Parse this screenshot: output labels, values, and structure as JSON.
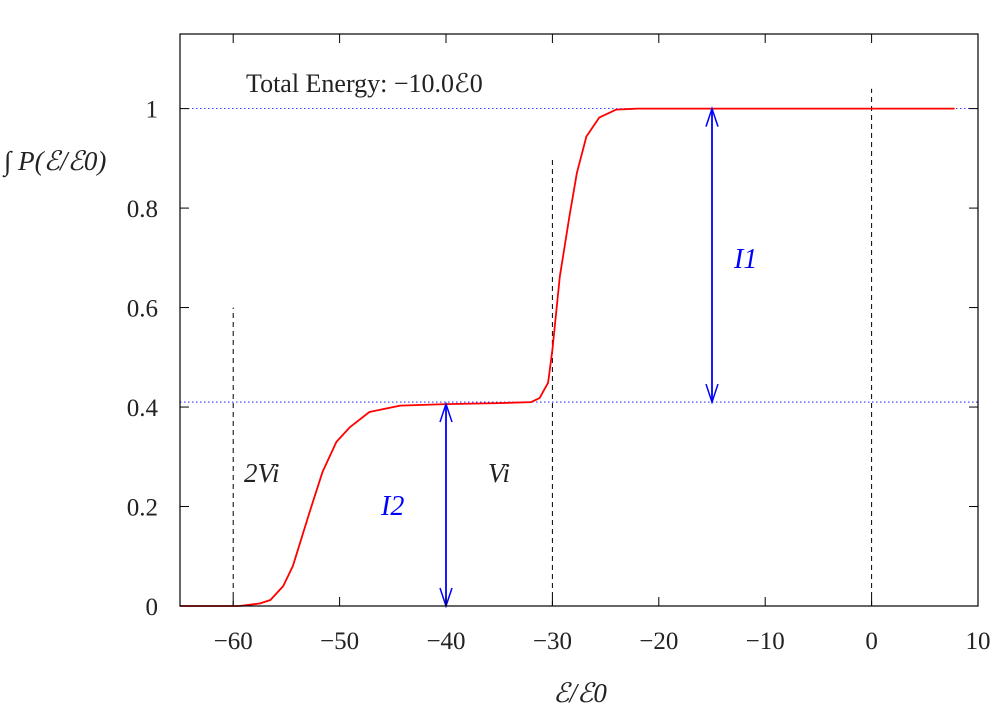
{
  "chart_data": {
    "type": "line",
    "title": "",
    "xlabel": "ℰ/ℰ0",
    "ylabel": "∫ P(ℰ/ℰ0)",
    "xlim": [
      -65,
      10
    ],
    "ylim": [
      0,
      1.15
    ],
    "grid": false,
    "xticks": [
      -60,
      -50,
      -40,
      -30,
      -20,
      -10,
      0,
      10
    ],
    "xtick_labels": [
      "−60",
      "−50",
      "−40",
      "−30",
      "−20",
      "−10",
      "0",
      "10"
    ],
    "yticks": [
      0,
      0.2,
      0.4,
      0.6,
      0.8,
      1
    ],
    "ytick_labels": [
      "0",
      "0.2",
      "0.4",
      "0.6",
      "0.8",
      "1"
    ],
    "series": [
      {
        "color": "#ff0000",
        "x": [
          -65,
          -60,
          -59.4,
          -57.5,
          -56.5,
          -55.3,
          -54.4,
          -52.8,
          -51.6,
          -50.3,
          -49.0,
          -47.2,
          -44.3,
          -40,
          -35,
          -32,
          -31.2,
          -30.4,
          -30,
          -29.3,
          -28.4,
          -27.7,
          -26.8,
          -25.6,
          -24,
          -22,
          -10,
          0,
          7.8
        ],
        "y": [
          0,
          0,
          0,
          0.005,
          0.012,
          0.04,
          0.08,
          0.19,
          0.27,
          0.33,
          0.36,
          0.39,
          0.403,
          0.406,
          0.408,
          0.41,
          0.418,
          0.449,
          0.515,
          0.662,
          0.783,
          0.871,
          0.944,
          0.982,
          0.998,
          1.0,
          1.0,
          1.0,
          1.0
        ]
      }
    ],
    "reference_lines": {
      "horizontal_dotted": {
        "color": "#0000ff",
        "y": [
          1.0,
          0.41
        ]
      },
      "vertical_dashed": [
        {
          "x": -60,
          "y_top": 0.6
        },
        {
          "x": -30,
          "y_top": 0.9
        },
        {
          "x": 0,
          "y_top": 1.04
        }
      ]
    },
    "annotations": {
      "total_energy": "Total Energy: −10.0ℰ0",
      "two_vi": "2Vi",
      "vi": "Vi",
      "i1": {
        "label": "I1",
        "x": -15,
        "from": 0.41,
        "to": 1.0,
        "color": "#0000ff"
      },
      "i2": {
        "label": "I2",
        "x": -40,
        "from": 0,
        "to": 0.406,
        "color": "#0000ff"
      }
    }
  }
}
